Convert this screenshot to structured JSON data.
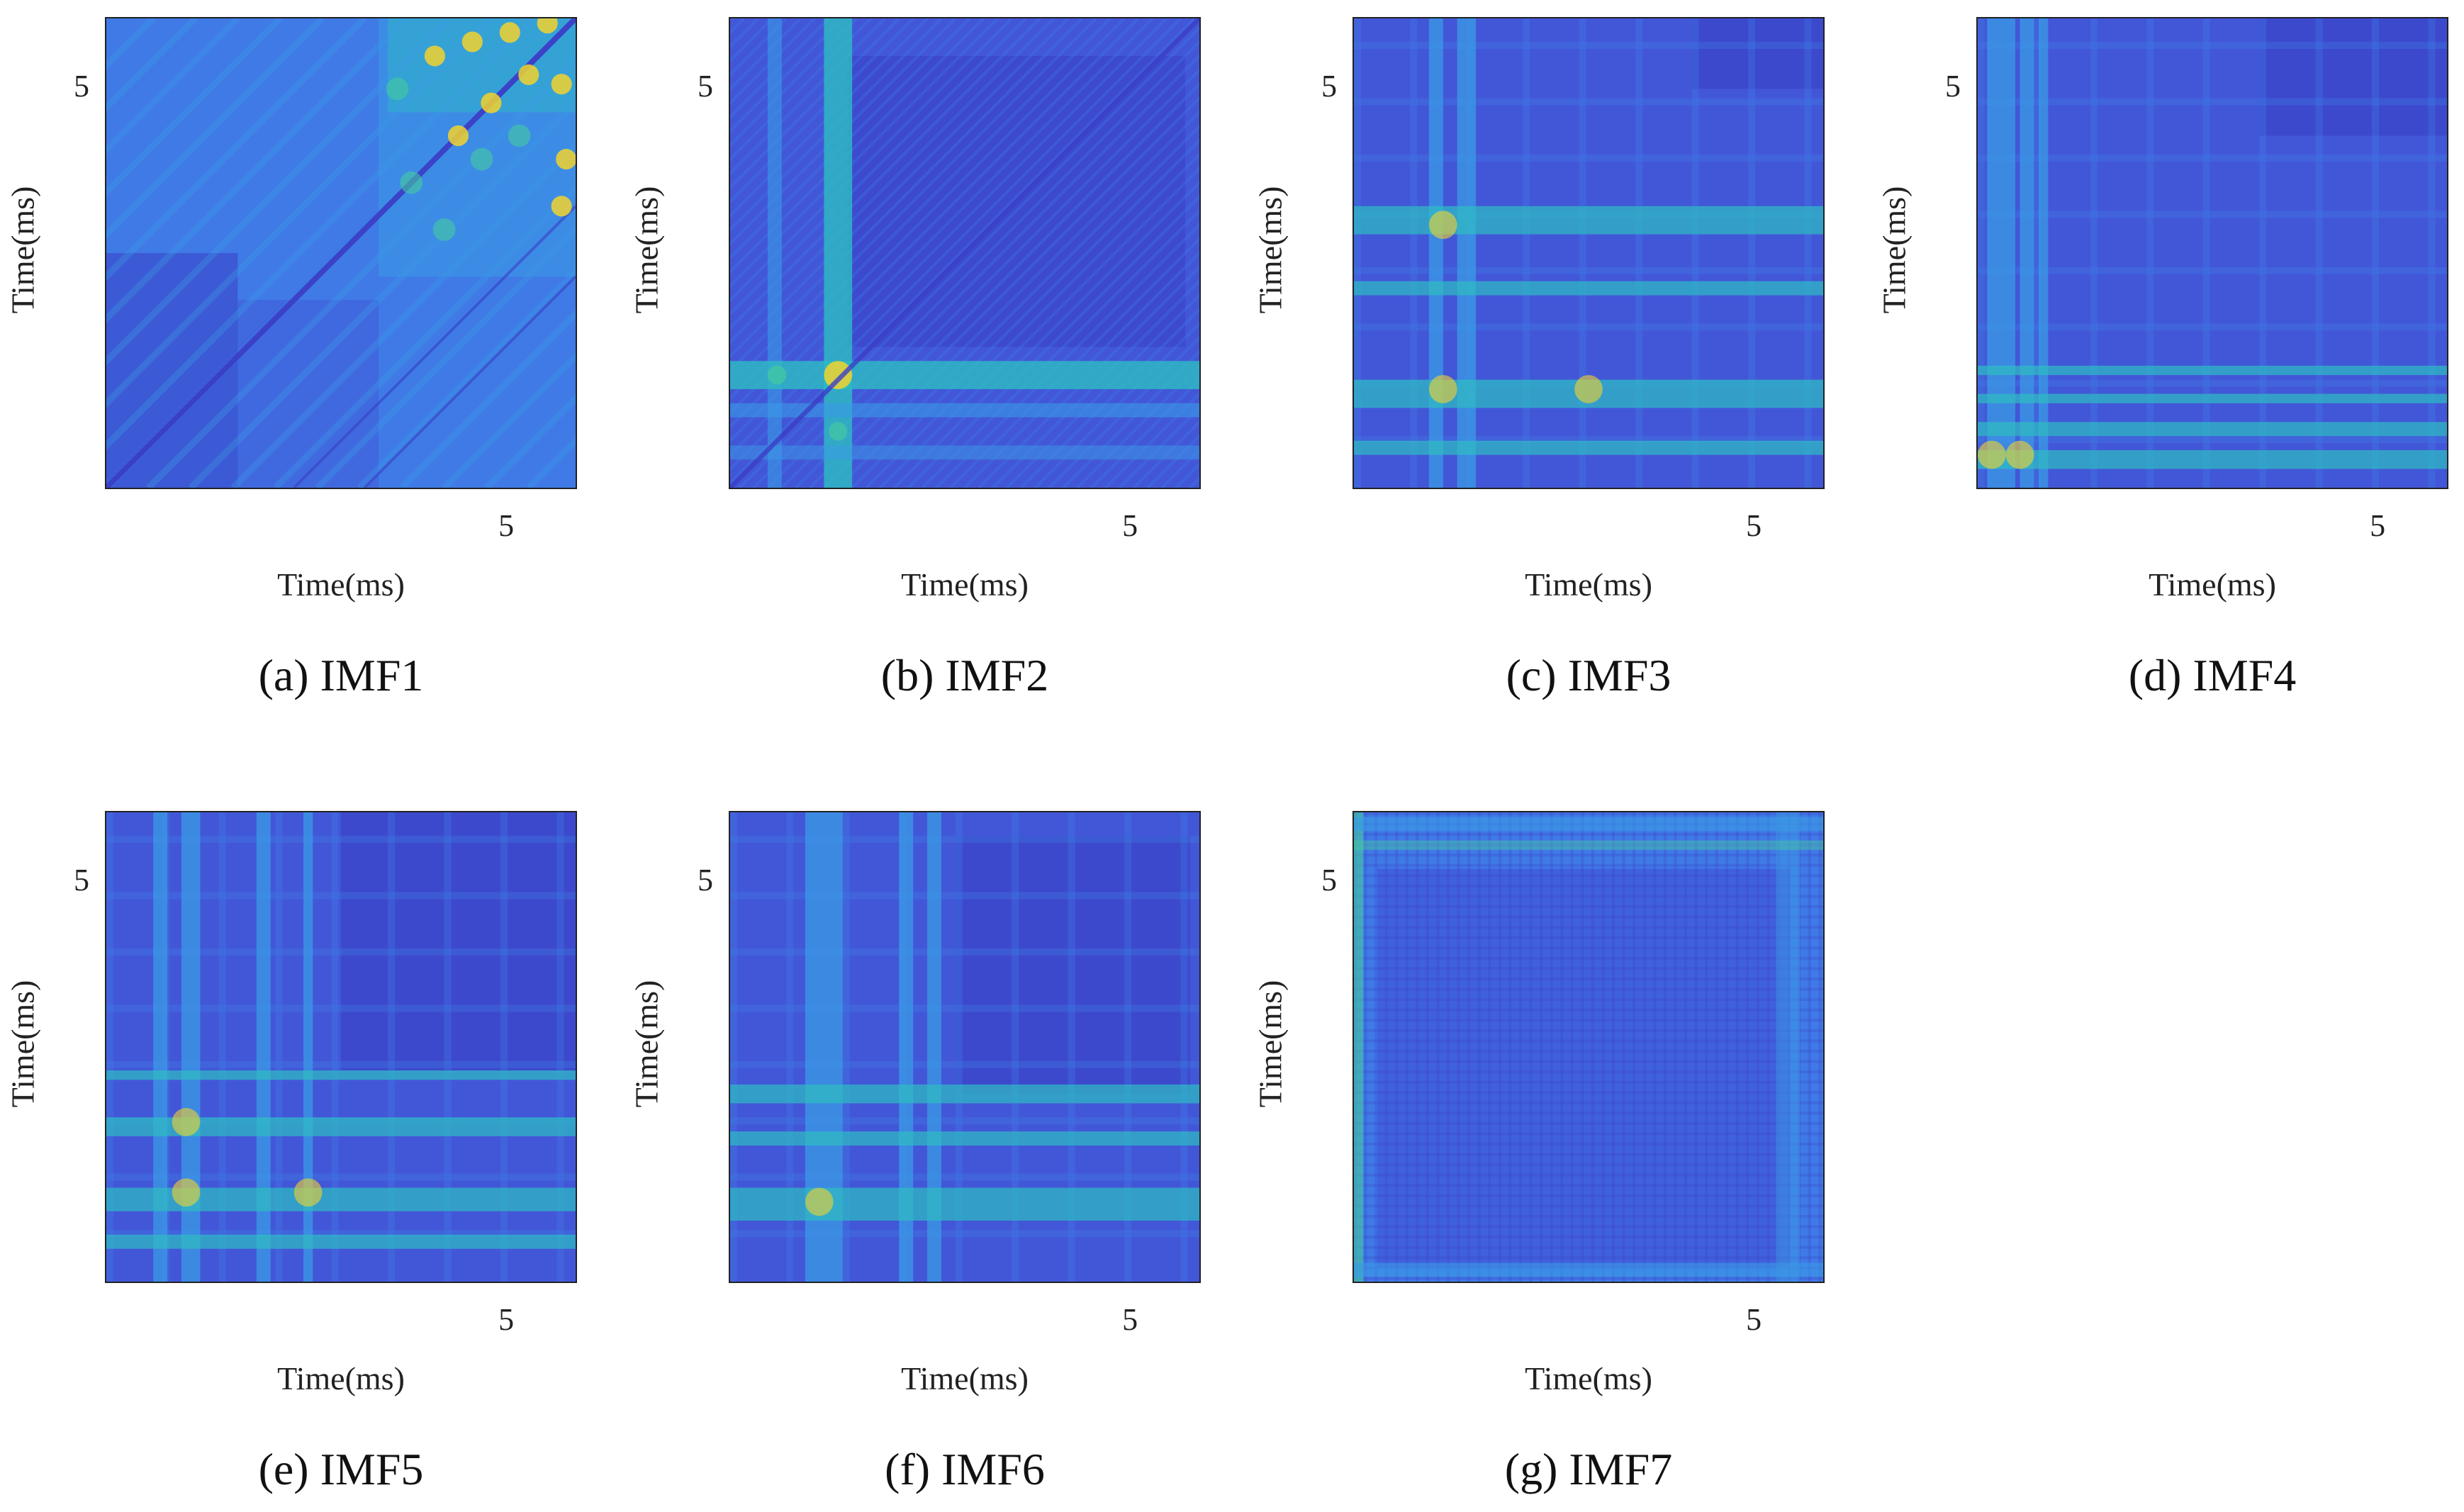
{
  "chart_data": [
    {
      "type": "heatmap",
      "panel_id": "a",
      "caption": "(a) IMF1",
      "xlabel": "Time(ms)",
      "ylabel": "Time(ms)",
      "x_tick_labels": [
        "5"
      ],
      "y_tick_labels": [
        "5"
      ],
      "colormap": "parula",
      "pattern": "diagonal-bands"
    },
    {
      "type": "heatmap",
      "panel_id": "b",
      "caption": "(b) IMF2",
      "xlabel": "Time(ms)",
      "ylabel": "Time(ms)",
      "x_tick_labels": [
        "5"
      ],
      "y_tick_labels": [
        "5"
      ],
      "colormap": "parula",
      "pattern": "cross-bands-with-texture"
    },
    {
      "type": "heatmap",
      "panel_id": "c",
      "caption": "(c) IMF3",
      "xlabel": "Time(ms)",
      "ylabel": "Time(ms)",
      "x_tick_labels": [
        "5"
      ],
      "y_tick_labels": [
        "5"
      ],
      "colormap": "parula",
      "pattern": "cross-bands"
    },
    {
      "type": "heatmap",
      "panel_id": "d",
      "caption": "(d) IMF4",
      "xlabel": "Time(ms)",
      "ylabel": "Time(ms)",
      "x_tick_labels": [
        "5"
      ],
      "y_tick_labels": [
        "5"
      ],
      "colormap": "parula",
      "pattern": "cross-bands"
    },
    {
      "type": "heatmap",
      "panel_id": "e",
      "caption": "(e) IMF5",
      "xlabel": "Time(ms)",
      "ylabel": "Time(ms)",
      "x_tick_labels": [
        "5"
      ],
      "y_tick_labels": [
        "5"
      ],
      "colormap": "parula",
      "pattern": "cross-bands"
    },
    {
      "type": "heatmap",
      "panel_id": "f",
      "caption": "(f) IMF6",
      "xlabel": "Time(ms)",
      "ylabel": "Time(ms)",
      "x_tick_labels": [
        "5"
      ],
      "y_tick_labels": [
        "5"
      ],
      "colormap": "parula",
      "pattern": "cross-bands"
    },
    {
      "type": "heatmap",
      "panel_id": "g",
      "caption": "(g) IMF7",
      "xlabel": "Time(ms)",
      "ylabel": "Time(ms)",
      "x_tick_labels": [
        "5"
      ],
      "y_tick_labels": [
        "5"
      ],
      "colormap": "parula",
      "pattern": "fine-grid"
    }
  ],
  "colors": {
    "dark_blue": "#3b3fc7",
    "base_blue": "#4257d8",
    "mid_blue": "#3f7ae6",
    "light_blue": "#3b9ae6",
    "cyan": "#2dbdc2",
    "teal": "#45c9a0",
    "yellow": "#f2d22e",
    "axis": "#222222"
  }
}
